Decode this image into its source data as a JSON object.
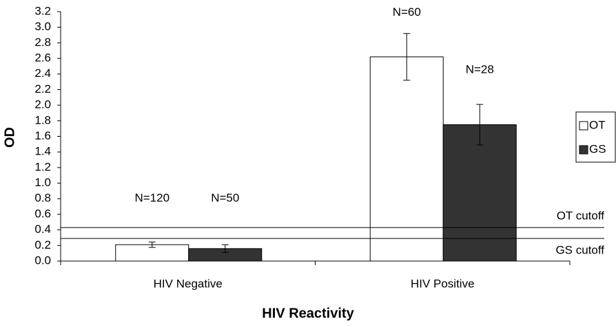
{
  "chart_data": {
    "type": "bar",
    "y_label": "OD",
    "x_label": "HIV Reactivity",
    "categories": [
      "HIV Negative",
      "HIV Positive"
    ],
    "series": [
      {
        "name": "OT",
        "color": "#ffffff",
        "values": [
          0.21,
          2.62
        ],
        "errors": [
          0.035,
          0.3
        ],
        "n_labels": [
          "N=120",
          "N=60"
        ]
      },
      {
        "name": "GS",
        "color": "#333333",
        "values": [
          0.16,
          1.75
        ],
        "errors": [
          0.05,
          0.26
        ],
        "n_labels": [
          "N=50",
          "N=28"
        ]
      }
    ],
    "reference_lines": [
      {
        "label": "OT cutoff",
        "value": 0.43
      },
      {
        "label": "GS cutoff",
        "value": 0.29
      }
    ],
    "ylim": [
      0,
      3.2
    ],
    "yticks": [
      {
        "value": 0,
        "label": "0.0"
      },
      0.2,
      0.4,
      0.6,
      0.8,
      {
        "value": 1,
        "label": "1.0"
      },
      1.2,
      1.4,
      1.6,
      1.8,
      {
        "value": 2,
        "label": "2.0"
      },
      2.2,
      2.4,
      2.6,
      2.8,
      {
        "value": 3,
        "label": "3.0"
      },
      3.2
    ],
    "legend": "right"
  }
}
